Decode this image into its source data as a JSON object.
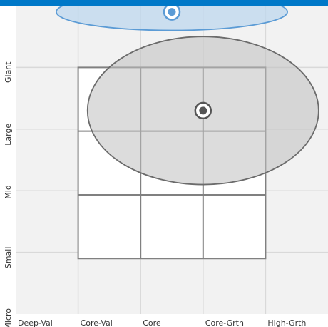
{
  "chart_data": {
    "type": "scatter",
    "title": "",
    "x_axis": {
      "labels": [
        "Deep-Val",
        "Core-Val",
        "Core",
        "Core-Grth",
        "High-Grth"
      ],
      "range": [
        0,
        5
      ]
    },
    "y_axis": {
      "labels": [
        "Micro",
        "Small",
        "Mid",
        "Large",
        "Giant"
      ],
      "range": [
        0,
        5
      ]
    },
    "grid": true,
    "style_box": {
      "x_range": [
        1.0,
        4.0
      ],
      "y_range": [
        0.9,
        4.0
      ],
      "cells": 3
    },
    "series": [
      {
        "marker_color": "#5B9BD5",
        "x": 2.5,
        "y": 4.9,
        "zone_x_radius": 1.85,
        "zone_y_radius": 0.3
      },
      {
        "marker_color": "#555555",
        "x": 3.0,
        "y": 3.3,
        "zone_x_radius": 1.85,
        "zone_y_radius": 1.2
      }
    ],
    "colors": {
      "top_bar": "#0078C8",
      "grid": "#D9D9D9",
      "style_box": "#808080",
      "zone_1_fill": "#BDD7EE",
      "zone_1_stroke": "#5B9BD5",
      "zone_2_fill": "#BFBFBF",
      "zone_2_stroke": "#6B6B6B"
    }
  }
}
